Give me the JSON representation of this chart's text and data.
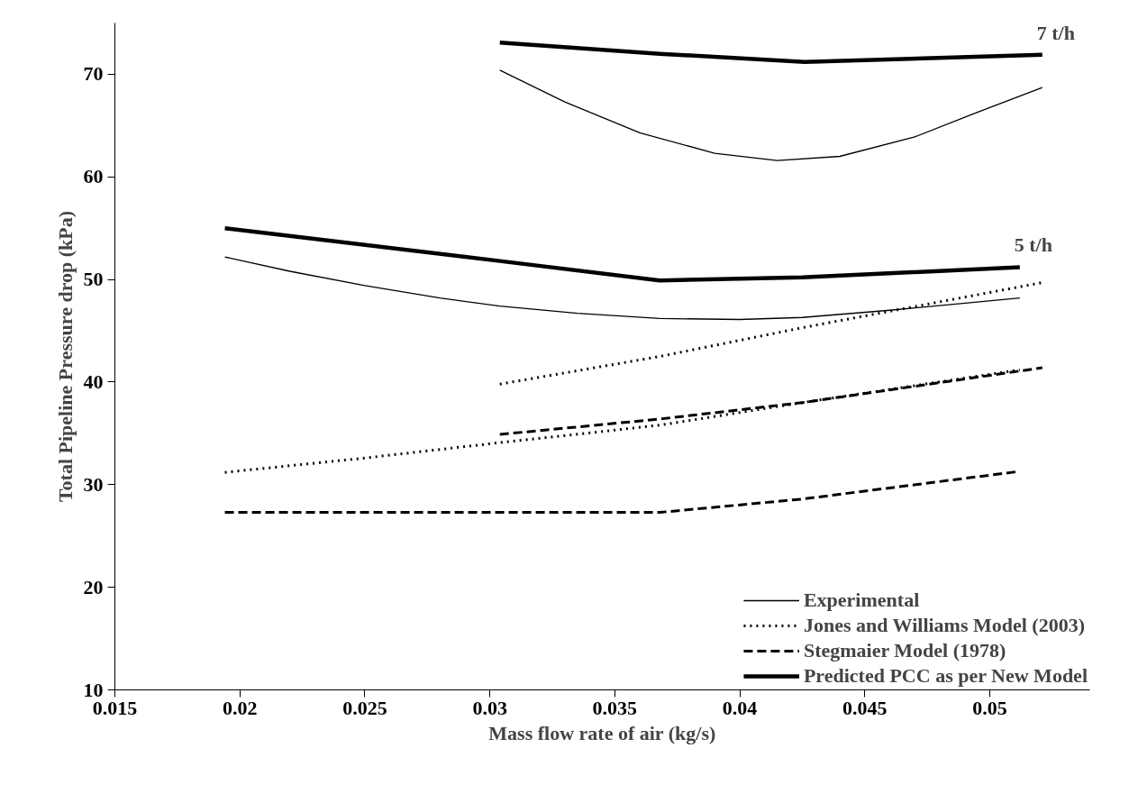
{
  "chart_data": {
    "type": "line",
    "xlabel": "Mass flow rate of air (kg/s)",
    "ylabel": "Total Pipeline Pressure drop (kPa)",
    "xlim": [
      0.015,
      0.054
    ],
    "ylim": [
      10,
      75
    ],
    "xticks": [
      0.015,
      0.02,
      0.025,
      0.03,
      0.035,
      0.04,
      0.045,
      0.05
    ],
    "yticks": [
      10,
      20,
      30,
      40,
      50,
      60,
      70
    ],
    "grid": false,
    "legend": "bottom right",
    "annotations": [
      {
        "text": "7 t/h",
        "x": 0.0521,
        "y": 71.9
      },
      {
        "text": "5 t/h",
        "x": 0.0512,
        "y": 51.2
      }
    ],
    "series": [
      {
        "name": "Experimental",
        "line_style": "solid",
        "color": "#000000",
        "x": [
          0.0194,
          0.022,
          0.025,
          0.028,
          0.0304,
          0.0335,
          0.0368,
          0.04,
          0.0425,
          0.046,
          0.0512
        ],
        "values": [
          52.2,
          50.8,
          49.4,
          48.2,
          47.4,
          46.7,
          46.2,
          46.1,
          46.3,
          47.0,
          48.2
        ]
      },
      {
        "name": "Jones and Williams Model (2003)",
        "line_style": "dotted",
        "color": "#000000",
        "x": [
          0.0194,
          0.025,
          0.0304,
          0.0368,
          0.0425,
          0.0512
        ],
        "values": [
          31.2,
          32.6,
          34.1,
          35.8,
          38.0,
          41.2
        ]
      },
      {
        "name": "Stegmaier Model (1978)",
        "line_style": "dashed",
        "color": "#000000",
        "x": [
          0.0194,
          0.0304,
          0.0368,
          0.0425,
          0.0512
        ],
        "values": [
          27.3,
          27.3,
          27.3,
          28.6,
          31.3
        ]
      },
      {
        "name": "Predicted PCC as per New Model",
        "line_style": "solid",
        "color": "#000000",
        "x": [
          0.0194,
          0.0304,
          0.0368,
          0.0425,
          0.0512
        ],
        "values": [
          55.0,
          51.8,
          49.9,
          50.2,
          51.2
        ]
      },
      {
        "line_style": "solid",
        "color": "#000000",
        "x": [
          0.0304,
          0.033,
          0.036,
          0.039,
          0.0415,
          0.044,
          0.047,
          0.0495,
          0.0521
        ],
        "values": [
          70.4,
          67.3,
          64.3,
          62.3,
          61.6,
          62.0,
          63.9,
          66.3,
          68.7
        ]
      },
      {
        "line_style": "dotted",
        "color": "#000000",
        "x": [
          0.0304,
          0.0368,
          0.0425,
          0.0521
        ],
        "values": [
          39.8,
          42.5,
          45.3,
          49.7
        ]
      },
      {
        "line_style": "dashed",
        "color": "#000000",
        "x": [
          0.0304,
          0.0368,
          0.0425,
          0.0521
        ],
        "values": [
          34.9,
          36.4,
          38.0,
          41.4
        ]
      },
      {
        "line_style": "solid",
        "color": "#000000",
        "x": [
          0.0304,
          0.0368,
          0.0426,
          0.0521
        ],
        "values": [
          73.1,
          72.0,
          71.2,
          71.9
        ]
      }
    ]
  }
}
